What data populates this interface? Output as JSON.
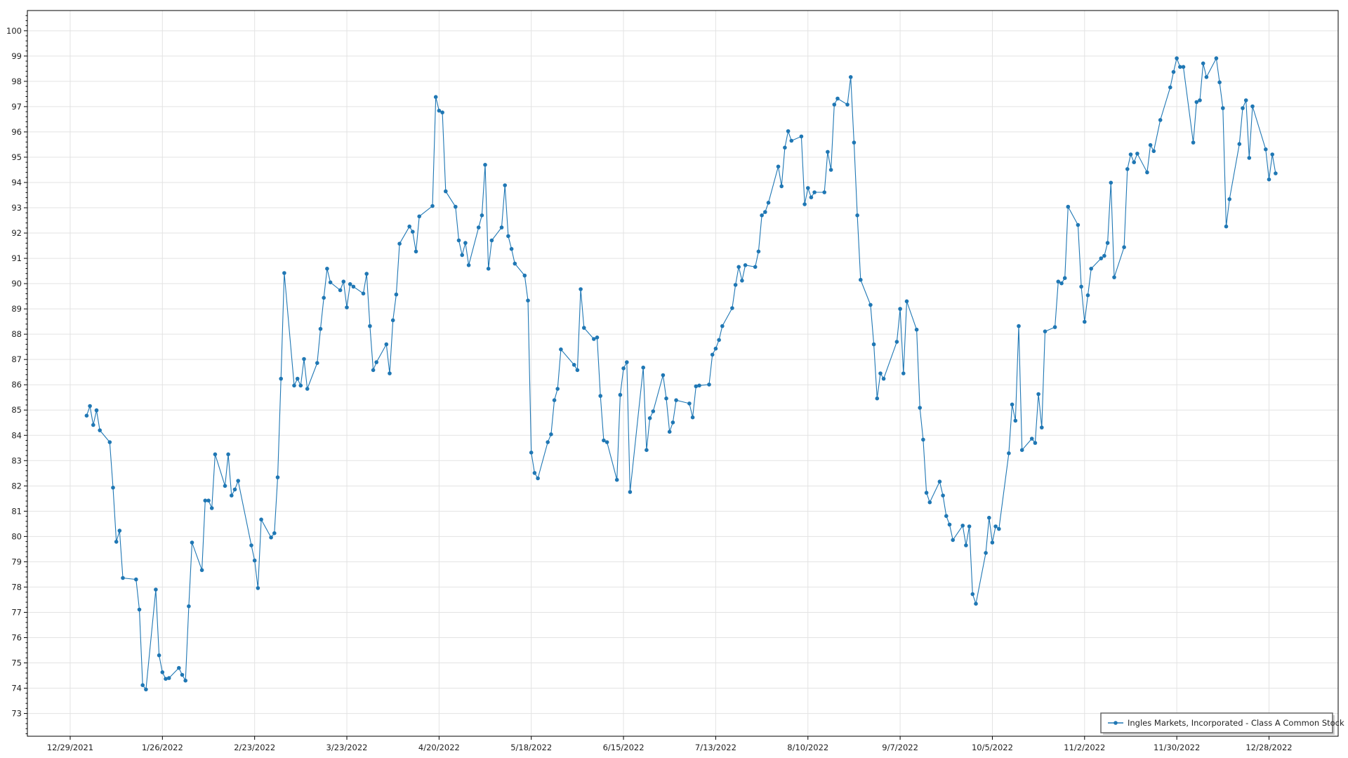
{
  "chart_data": {
    "type": "line",
    "title": "",
    "xlabel": "",
    "ylabel": "",
    "xlim": [
      "2021-12-16",
      "2023-01-18"
    ],
    "ylim": [
      72.1,
      100.8
    ],
    "grid": true,
    "legend_placement": "bottom-right",
    "x_ticks": [
      "12/29/2021",
      "1/26/2022",
      "2/23/2022",
      "3/23/2022",
      "4/20/2022",
      "5/18/2022",
      "6/15/2022",
      "7/13/2022",
      "8/10/2022",
      "9/7/2022",
      "10/5/2022",
      "11/2/2022",
      "11/30/2022",
      "12/28/2022"
    ],
    "y_ticks": [
      73,
      74,
      75,
      76,
      77,
      78,
      79,
      80,
      81,
      82,
      83,
      84,
      85,
      86,
      87,
      88,
      89,
      90,
      91,
      92,
      93,
      94,
      95,
      96,
      97,
      98,
      99,
      100
    ],
    "series": [
      {
        "name": "Ingles Markets, Incorporated - Class A Common Stock",
        "color": "#1f77b4",
        "marker": "circle",
        "points": [
          [
            "2022-01-03",
            84.78
          ],
          [
            "2022-01-04",
            85.16
          ],
          [
            "2022-01-05",
            84.41
          ],
          [
            "2022-01-06",
            84.99
          ],
          [
            "2022-01-07",
            84.2
          ],
          [
            "2022-01-10",
            83.73
          ],
          [
            "2022-01-11",
            81.93
          ],
          [
            "2022-01-12",
            79.79
          ],
          [
            "2022-01-13",
            80.23
          ],
          [
            "2022-01-14",
            78.36
          ],
          [
            "2022-01-18",
            78.3
          ],
          [
            "2022-01-19",
            77.11
          ],
          [
            "2022-01-20",
            74.12
          ],
          [
            "2022-01-21",
            73.95
          ],
          [
            "2022-01-24",
            77.9
          ],
          [
            "2022-01-25",
            75.3
          ],
          [
            "2022-01-26",
            74.63
          ],
          [
            "2022-01-27",
            74.37
          ],
          [
            "2022-01-28",
            74.4
          ],
          [
            "2022-01-31",
            74.8
          ],
          [
            "2022-02-01",
            74.53
          ],
          [
            "2022-02-02",
            74.3
          ],
          [
            "2022-02-03",
            77.24
          ],
          [
            "2022-02-04",
            79.76
          ],
          [
            "2022-02-07",
            78.67
          ],
          [
            "2022-02-08",
            81.42
          ],
          [
            "2022-02-09",
            81.42
          ],
          [
            "2022-02-10",
            81.12
          ],
          [
            "2022-02-11",
            83.25
          ],
          [
            "2022-02-14",
            82.0
          ],
          [
            "2022-02-15",
            83.25
          ],
          [
            "2022-02-16",
            81.62
          ],
          [
            "2022-02-17",
            81.86
          ],
          [
            "2022-02-18",
            82.2
          ],
          [
            "2022-02-22",
            79.65
          ],
          [
            "2022-02-23",
            79.05
          ],
          [
            "2022-02-24",
            77.96
          ],
          [
            "2022-02-25",
            80.67
          ],
          [
            "2022-02-28",
            79.96
          ],
          [
            "2022-03-01",
            80.13
          ],
          [
            "2022-03-02",
            82.34
          ],
          [
            "2022-03-03",
            86.24
          ],
          [
            "2022-03-04",
            90.42
          ],
          [
            "2022-03-07",
            85.97
          ],
          [
            "2022-03-08",
            86.24
          ],
          [
            "2022-03-09",
            85.97
          ],
          [
            "2022-03-10",
            87.02
          ],
          [
            "2022-03-11",
            85.84
          ],
          [
            "2022-03-14",
            86.86
          ],
          [
            "2022-03-15",
            88.21
          ],
          [
            "2022-03-16",
            89.44
          ],
          [
            "2022-03-17",
            90.59
          ],
          [
            "2022-03-18",
            90.05
          ],
          [
            "2022-03-21",
            89.74
          ],
          [
            "2022-03-22",
            90.08
          ],
          [
            "2022-03-23",
            89.06
          ],
          [
            "2022-03-24",
            89.98
          ],
          [
            "2022-03-25",
            89.88
          ],
          [
            "2022-03-28",
            89.61
          ],
          [
            "2022-03-29",
            90.39
          ],
          [
            "2022-03-30",
            88.32
          ],
          [
            "2022-03-31",
            86.58
          ],
          [
            "2022-04-01",
            86.89
          ],
          [
            "2022-04-04",
            87.6
          ],
          [
            "2022-04-05",
            86.45
          ],
          [
            "2022-04-06",
            88.55
          ],
          [
            "2022-04-07",
            89.57
          ],
          [
            "2022-04-08",
            91.58
          ],
          [
            "2022-04-11",
            92.26
          ],
          [
            "2022-04-12",
            92.05
          ],
          [
            "2022-04-13",
            91.27
          ],
          [
            "2022-04-14",
            92.66
          ],
          [
            "2022-04-18",
            93.07
          ],
          [
            "2022-04-19",
            97.38
          ],
          [
            "2022-04-20",
            96.84
          ],
          [
            "2022-04-21",
            96.77
          ],
          [
            "2022-04-22",
            93.65
          ],
          [
            "2022-04-25",
            93.04
          ],
          [
            "2022-04-26",
            91.71
          ],
          [
            "2022-04-27",
            91.13
          ],
          [
            "2022-04-28",
            91.61
          ],
          [
            "2022-04-29",
            90.73
          ],
          [
            "2022-05-02",
            92.22
          ],
          [
            "2022-05-03",
            92.7
          ],
          [
            "2022-05-04",
            94.7
          ],
          [
            "2022-05-05",
            90.59
          ],
          [
            "2022-05-06",
            91.71
          ],
          [
            "2022-05-09",
            92.22
          ],
          [
            "2022-05-10",
            93.89
          ],
          [
            "2022-05-11",
            91.88
          ],
          [
            "2022-05-12",
            91.37
          ],
          [
            "2022-05-13",
            90.79
          ],
          [
            "2022-05-16",
            90.32
          ],
          [
            "2022-05-17",
            89.33
          ],
          [
            "2022-05-18",
            83.32
          ],
          [
            "2022-05-19",
            82.51
          ],
          [
            "2022-05-20",
            82.3
          ],
          [
            "2022-05-23",
            83.73
          ],
          [
            "2022-05-24",
            84.04
          ],
          [
            "2022-05-25",
            85.39
          ],
          [
            "2022-05-26",
            85.84
          ],
          [
            "2022-05-27",
            87.4
          ],
          [
            "2022-05-31",
            86.79
          ],
          [
            "2022-06-01",
            86.58
          ],
          [
            "2022-06-02",
            89.78
          ],
          [
            "2022-06-03",
            88.25
          ],
          [
            "2022-06-06",
            87.81
          ],
          [
            "2022-06-07",
            87.87
          ],
          [
            "2022-06-08",
            85.56
          ],
          [
            "2022-06-09",
            83.8
          ],
          [
            "2022-06-10",
            83.73
          ],
          [
            "2022-06-13",
            82.24
          ],
          [
            "2022-06-14",
            85.6
          ],
          [
            "2022-06-15",
            86.65
          ],
          [
            "2022-06-16",
            86.89
          ],
          [
            "2022-06-17",
            81.76
          ],
          [
            "2022-06-21",
            86.68
          ],
          [
            "2022-06-22",
            83.42
          ],
          [
            "2022-06-23",
            84.68
          ],
          [
            "2022-06-24",
            84.95
          ],
          [
            "2022-06-27",
            86.38
          ],
          [
            "2022-06-28",
            85.46
          ],
          [
            "2022-06-29",
            84.14
          ],
          [
            "2022-06-30",
            84.51
          ],
          [
            "2022-07-01",
            85.39
          ],
          [
            "2022-07-05",
            85.26
          ],
          [
            "2022-07-06",
            84.71
          ],
          [
            "2022-07-07",
            85.94
          ],
          [
            "2022-07-08",
            85.97
          ],
          [
            "2022-07-11",
            86.01
          ],
          [
            "2022-07-12",
            87.19
          ],
          [
            "2022-07-13",
            87.43
          ],
          [
            "2022-07-14",
            87.77
          ],
          [
            "2022-07-15",
            88.32
          ],
          [
            "2022-07-18",
            89.03
          ],
          [
            "2022-07-19",
            89.95
          ],
          [
            "2022-07-20",
            90.66
          ],
          [
            "2022-07-21",
            90.12
          ],
          [
            "2022-07-22",
            90.73
          ],
          [
            "2022-07-25",
            90.66
          ],
          [
            "2022-07-26",
            91.27
          ],
          [
            "2022-07-27",
            92.7
          ],
          [
            "2022-07-28",
            92.83
          ],
          [
            "2022-07-29",
            93.2
          ],
          [
            "2022-08-01",
            94.63
          ],
          [
            "2022-08-02",
            93.85
          ],
          [
            "2022-08-03",
            95.38
          ],
          [
            "2022-08-04",
            96.03
          ],
          [
            "2022-08-05",
            95.65
          ],
          [
            "2022-08-08",
            95.82
          ],
          [
            "2022-08-09",
            93.14
          ],
          [
            "2022-08-10",
            93.78
          ],
          [
            "2022-08-11",
            93.41
          ],
          [
            "2022-08-12",
            93.61
          ],
          [
            "2022-08-15",
            93.61
          ],
          [
            "2022-08-16",
            95.21
          ],
          [
            "2022-08-17",
            94.5
          ],
          [
            "2022-08-18",
            97.08
          ],
          [
            "2022-08-19",
            97.32
          ],
          [
            "2022-08-22",
            97.08
          ],
          [
            "2022-08-23",
            98.17
          ],
          [
            "2022-08-24",
            95.58
          ],
          [
            "2022-08-25",
            92.7
          ],
          [
            "2022-08-26",
            90.15
          ],
          [
            "2022-08-29",
            89.16
          ],
          [
            "2022-08-30",
            87.6
          ],
          [
            "2022-08-31",
            85.46
          ],
          [
            "2022-09-01",
            86.45
          ],
          [
            "2022-09-02",
            86.24
          ],
          [
            "2022-09-06",
            87.7
          ],
          [
            "2022-09-07",
            89.0
          ],
          [
            "2022-09-08",
            86.45
          ],
          [
            "2022-09-09",
            89.3
          ],
          [
            "2022-09-12",
            88.18
          ],
          [
            "2022-09-13",
            85.09
          ],
          [
            "2022-09-14",
            83.83
          ],
          [
            "2022-09-15",
            81.73
          ],
          [
            "2022-09-16",
            81.35
          ],
          [
            "2022-09-19",
            82.17
          ],
          [
            "2022-09-20",
            81.62
          ],
          [
            "2022-09-21",
            80.81
          ],
          [
            "2022-09-22",
            80.47
          ],
          [
            "2022-09-23",
            79.86
          ],
          [
            "2022-09-26",
            80.43
          ],
          [
            "2022-09-27",
            79.65
          ],
          [
            "2022-09-28",
            80.4
          ],
          [
            "2022-09-29",
            77.72
          ],
          [
            "2022-09-30",
            77.34
          ],
          [
            "2022-10-03",
            79.35
          ],
          [
            "2022-10-04",
            80.74
          ],
          [
            "2022-10-05",
            79.76
          ],
          [
            "2022-10-06",
            80.4
          ],
          [
            "2022-10-07",
            80.3
          ],
          [
            "2022-10-10",
            83.29
          ],
          [
            "2022-10-11",
            85.22
          ],
          [
            "2022-10-12",
            84.58
          ],
          [
            "2022-10-13",
            88.32
          ],
          [
            "2022-10-14",
            83.42
          ],
          [
            "2022-10-17",
            83.87
          ],
          [
            "2022-10-18",
            83.7
          ],
          [
            "2022-10-19",
            85.63
          ],
          [
            "2022-10-20",
            84.31
          ],
          [
            "2022-10-21",
            88.11
          ],
          [
            "2022-10-24",
            88.28
          ],
          [
            "2022-10-25",
            90.08
          ],
          [
            "2022-10-26",
            90.01
          ],
          [
            "2022-10-27",
            90.22
          ],
          [
            "2022-10-28",
            93.04
          ],
          [
            "2022-10-31",
            92.32
          ],
          [
            "2022-11-01",
            89.88
          ],
          [
            "2022-11-02",
            88.49
          ],
          [
            "2022-11-03",
            89.54
          ],
          [
            "2022-11-04",
            90.59
          ],
          [
            "2022-11-07",
            91.0
          ],
          [
            "2022-11-08",
            91.1
          ],
          [
            "2022-11-09",
            91.61
          ],
          [
            "2022-11-10",
            93.99
          ],
          [
            "2022-11-11",
            90.25
          ],
          [
            "2022-11-14",
            91.44
          ],
          [
            "2022-11-15",
            94.53
          ],
          [
            "2022-11-16",
            95.11
          ],
          [
            "2022-11-17",
            94.8
          ],
          [
            "2022-11-18",
            95.14
          ],
          [
            "2022-11-21",
            94.4
          ],
          [
            "2022-11-22",
            95.48
          ],
          [
            "2022-11-23",
            95.24
          ],
          [
            "2022-11-25",
            96.47
          ],
          [
            "2022-11-28",
            97.76
          ],
          [
            "2022-11-29",
            98.37
          ],
          [
            "2022-11-30",
            98.91
          ],
          [
            "2022-12-01",
            98.57
          ],
          [
            "2022-12-02",
            98.57
          ],
          [
            "2022-12-05",
            95.58
          ],
          [
            "2022-12-06",
            97.18
          ],
          [
            "2022-12-07",
            97.25
          ],
          [
            "2022-12-08",
            98.71
          ],
          [
            "2022-12-09",
            98.17
          ],
          [
            "2022-12-12",
            98.91
          ],
          [
            "2022-12-13",
            97.96
          ],
          [
            "2022-12-14",
            96.94
          ],
          [
            "2022-12-15",
            92.26
          ],
          [
            "2022-12-16",
            93.34
          ],
          [
            "2022-12-19",
            95.52
          ],
          [
            "2022-12-20",
            96.94
          ],
          [
            "2022-12-21",
            97.25
          ],
          [
            "2022-12-22",
            94.97
          ],
          [
            "2022-12-23",
            97.01
          ],
          [
            "2022-12-27",
            95.31
          ],
          [
            "2022-12-28",
            94.12
          ],
          [
            "2022-12-29",
            95.11
          ],
          [
            "2022-12-30",
            94.36
          ]
        ]
      }
    ]
  }
}
